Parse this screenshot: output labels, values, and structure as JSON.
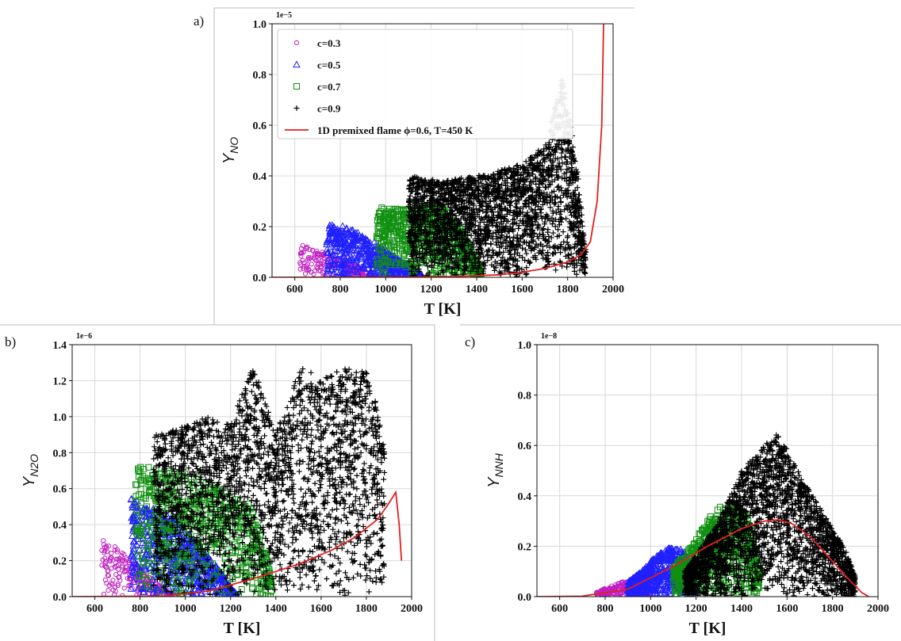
{
  "colors": {
    "c03": "#c020c0",
    "c05": "#2020ff",
    "c07": "#109010",
    "c09": "#000000",
    "flame": "#e02020",
    "grid": "#d8d8d8"
  },
  "legend": {
    "entries": [
      "c=0.3",
      "c=0.5",
      "c=0.7",
      "c=0.9",
      "1D premixed flame ϕ=0.6, T=450 K"
    ]
  },
  "chart_data": [
    {
      "panel": "a)",
      "type": "scatter",
      "xlabel": "T [K]",
      "ylabel_main": "Y",
      "ylabel_sub": "NO",
      "offset_text": "1e−5",
      "xlim": [
        500,
        2000
      ],
      "ylim": [
        0,
        1.0
      ],
      "xticks": [
        "600",
        "800",
        "1000",
        "1200",
        "1400",
        "1600",
        "1800",
        "2000"
      ],
      "yticks": [
        "0.0",
        "0.2",
        "0.4",
        "0.6",
        "0.8",
        "1.0"
      ],
      "series": [
        {
          "name": "c=0.3",
          "band": [
            [
              620,
              0.13
            ],
            [
              700,
              0.11
            ],
            [
              780,
              0.08
            ],
            [
              860,
              0.05
            ],
            [
              920,
              0.02
            ],
            [
              960,
              0.005
            ]
          ]
        },
        {
          "name": "c=0.5",
          "band": [
            [
              740,
              0.22
            ],
            [
              820,
              0.2
            ],
            [
              900,
              0.17
            ],
            [
              980,
              0.12
            ],
            [
              1060,
              0.07
            ],
            [
              1120,
              0.03
            ],
            [
              1160,
              0.01
            ]
          ]
        },
        {
          "name": "c=0.7",
          "band": [
            [
              960,
              0.28
            ],
            [
              1050,
              0.27
            ],
            [
              1150,
              0.28
            ],
            [
              1250,
              0.28
            ],
            [
              1330,
              0.2
            ],
            [
              1390,
              0.08
            ],
            [
              1420,
              0.02
            ]
          ]
        },
        {
          "name": "c=0.9",
          "band": [
            [
              1100,
              0.4
            ],
            [
              1250,
              0.38
            ],
            [
              1400,
              0.4
            ],
            [
              1500,
              0.42
            ],
            [
              1600,
              0.45
            ],
            [
              1700,
              0.52
            ],
            [
              1780,
              0.8
            ],
            [
              1840,
              0.45
            ],
            [
              1880,
              0.1
            ]
          ]
        }
      ],
      "line": {
        "name": "1D premixed flame ϕ=0.6, T=450 K",
        "x": [
          500,
          1000,
          1300,
          1500,
          1600,
          1700,
          1800,
          1860,
          1900,
          1930,
          1950,
          1958
        ],
        "y": [
          0,
          0.0005,
          0.003,
          0.01,
          0.02,
          0.035,
          0.06,
          0.09,
          0.14,
          0.3,
          0.6,
          1.0
        ]
      },
      "legend_position": "top-left"
    },
    {
      "panel": "b)",
      "type": "scatter",
      "xlabel": "T [K]",
      "ylabel_main": "Y",
      "ylabel_sub": "N2O",
      "offset_text": "1e−6",
      "xlim": [
        500,
        2000
      ],
      "ylim": [
        0,
        1.4
      ],
      "xticks": [
        "600",
        "800",
        "1000",
        "1200",
        "1400",
        "1600",
        "1800",
        "2000"
      ],
      "yticks": [
        "0.0",
        "0.2",
        "0.4",
        "0.6",
        "0.8",
        "1.0",
        "1.2",
        "1.4"
      ],
      "series": [
        {
          "name": "c=0.3",
          "band": [
            [
              630,
              0.32
            ],
            [
              700,
              0.27
            ],
            [
              780,
              0.18
            ],
            [
              860,
              0.09
            ],
            [
              920,
              0.03
            ],
            [
              960,
              0.005
            ]
          ]
        },
        {
          "name": "c=0.5",
          "band": [
            [
              760,
              0.55
            ],
            [
              850,
              0.5
            ],
            [
              950,
              0.45
            ],
            [
              1050,
              0.3
            ],
            [
              1150,
              0.15
            ],
            [
              1200,
              0.05
            ],
            [
              1230,
              0.01
            ]
          ]
        },
        {
          "name": "c=0.7",
          "band": [
            [
              780,
              0.75
            ],
            [
              900,
              0.7
            ],
            [
              1000,
              0.7
            ],
            [
              1100,
              0.65
            ],
            [
              1200,
              0.58
            ],
            [
              1300,
              0.5
            ],
            [
              1350,
              0.3
            ],
            [
              1380,
              0.1
            ]
          ]
        },
        {
          "name": "c=0.9",
          "band": [
            [
              860,
              0.9
            ],
            [
              1000,
              0.95
            ],
            [
              1100,
              1.0
            ],
            [
              1200,
              0.95
            ],
            [
              1300,
              1.3
            ],
            [
              1400,
              0.9
            ],
            [
              1500,
              1.3
            ],
            [
              1600,
              1.2
            ],
            [
              1700,
              1.28
            ],
            [
              1800,
              1.25
            ],
            [
              1850,
              1.05
            ],
            [
              1880,
              0.8
            ]
          ]
        }
      ],
      "line": {
        "name": "1D premixed flame ϕ=0.6, T=450 K",
        "x": [
          500,
          900,
          1100,
          1300,
          1500,
          1650,
          1750,
          1850,
          1900,
          1930,
          1945,
          1955
        ],
        "y": [
          0,
          0.003,
          0.03,
          0.1,
          0.18,
          0.26,
          0.33,
          0.43,
          0.52,
          0.58,
          0.4,
          0.2
        ]
      }
    },
    {
      "panel": "c)",
      "type": "scatter",
      "xlabel": "T [K]",
      "ylabel_main": "Y",
      "ylabel_sub": "NNH",
      "offset_text": "1e−8",
      "xlim": [
        500,
        2000
      ],
      "ylim": [
        0,
        1.0
      ],
      "xticks": [
        "600",
        "800",
        "1000",
        "1200",
        "1400",
        "1600",
        "1800",
        "2000"
      ],
      "yticks": [
        "0.0",
        "0.2",
        "0.4",
        "0.6",
        "0.8",
        "1.0"
      ],
      "series": [
        {
          "name": "c=0.3",
          "band": [
            [
              760,
              0.02
            ],
            [
              820,
              0.04
            ],
            [
              880,
              0.06
            ],
            [
              930,
              0.06
            ],
            [
              970,
              0.04
            ],
            [
              1000,
              0.02
            ]
          ]
        },
        {
          "name": "c=0.5",
          "band": [
            [
              900,
              0.06
            ],
            [
              960,
              0.1
            ],
            [
              1020,
              0.16
            ],
            [
              1080,
              0.2
            ],
            [
              1140,
              0.19
            ],
            [
              1180,
              0.12
            ],
            [
              1200,
              0.06
            ]
          ]
        },
        {
          "name": "c=0.7",
          "band": [
            [
              1100,
              0.12
            ],
            [
              1180,
              0.2
            ],
            [
              1260,
              0.32
            ],
            [
              1330,
              0.38
            ],
            [
              1400,
              0.36
            ],
            [
              1450,
              0.26
            ],
            [
              1480,
              0.12
            ]
          ]
        },
        {
          "name": "c=0.9",
          "band": [
            [
              1150,
              0.1
            ],
            [
              1300,
              0.3
            ],
            [
              1400,
              0.5
            ],
            [
              1500,
              0.6
            ],
            [
              1560,
              0.65
            ],
            [
              1620,
              0.55
            ],
            [
              1700,
              0.42
            ],
            [
              1780,
              0.3
            ],
            [
              1850,
              0.2
            ],
            [
              1900,
              0.08
            ]
          ]
        }
      ],
      "line": {
        "name": "1D premixed flame ϕ=0.6, T=450 K",
        "x": [
          500,
          700,
          900,
          1100,
          1250,
          1400,
          1500,
          1560,
          1620,
          1700,
          1800,
          1880,
          1930,
          1960
        ],
        "y": [
          0,
          0.002,
          0.03,
          0.12,
          0.2,
          0.27,
          0.3,
          0.305,
          0.29,
          0.24,
          0.14,
          0.06,
          0.015,
          0
        ]
      }
    }
  ]
}
